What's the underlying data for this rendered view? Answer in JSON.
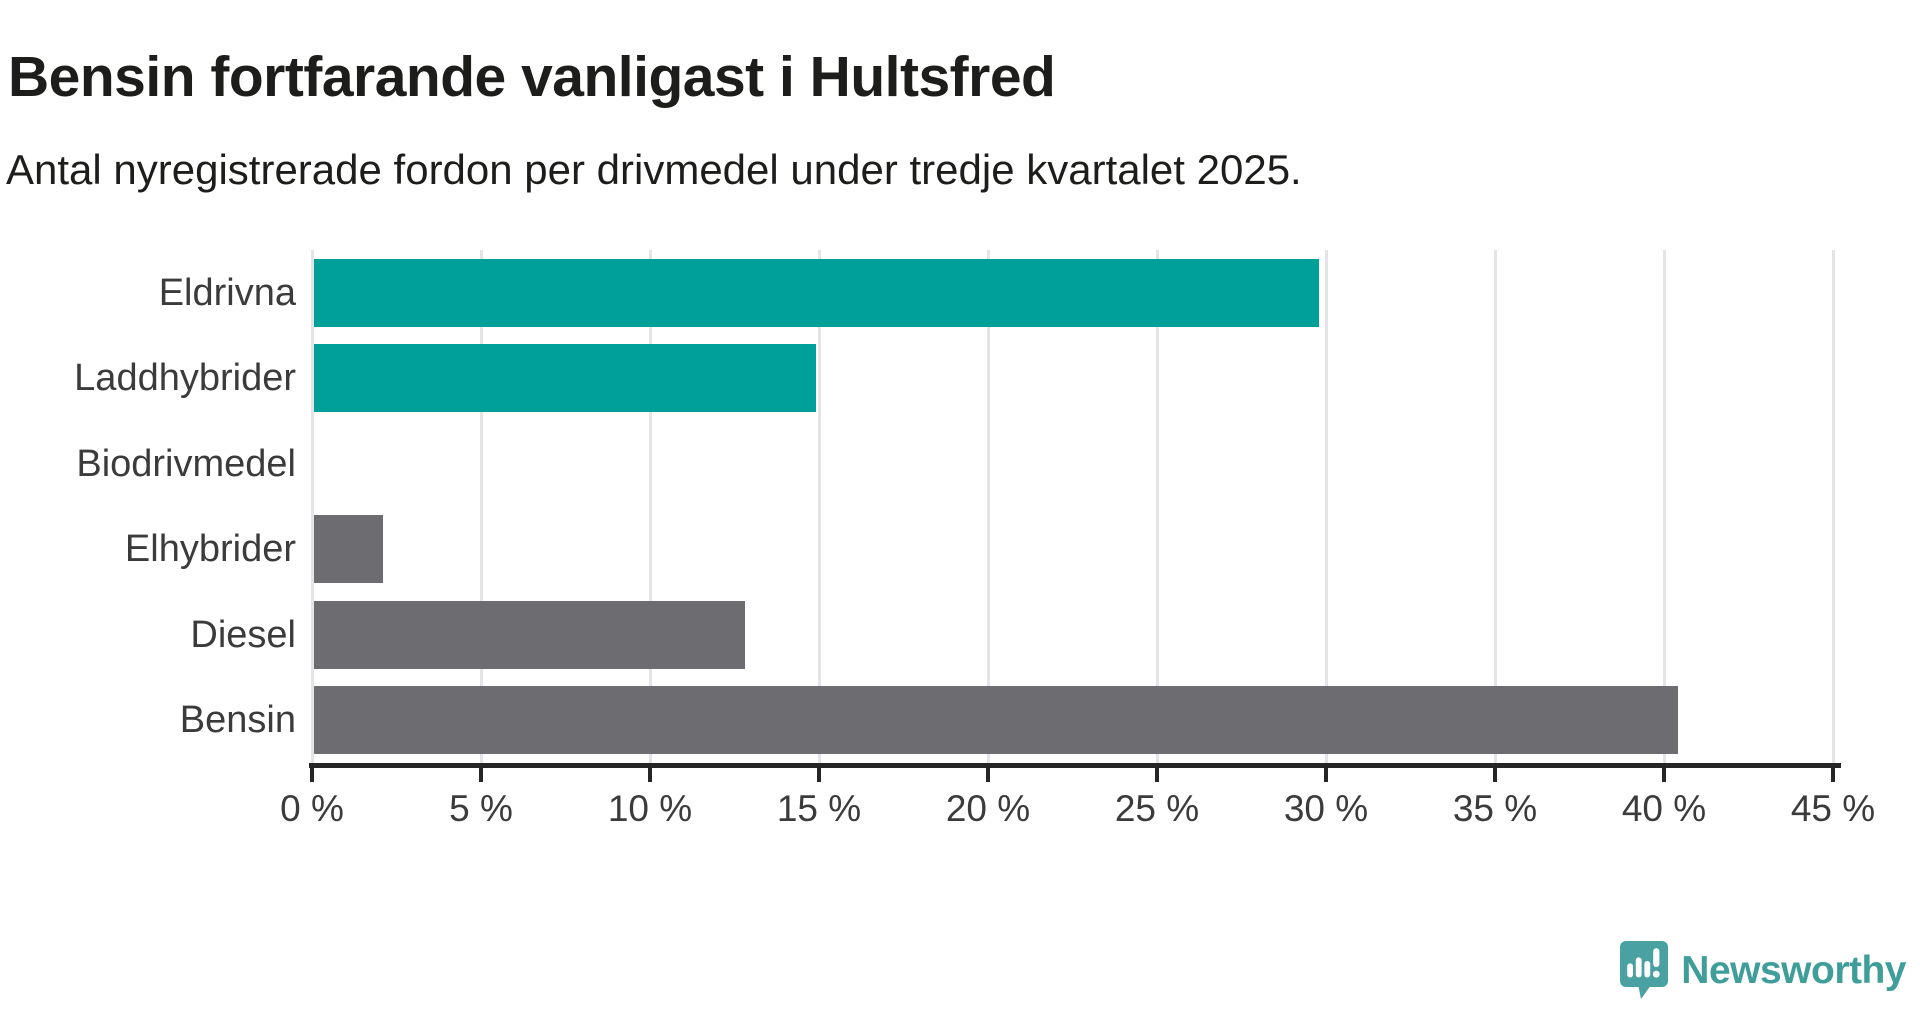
{
  "title": "Bensin fortfarande vanligast i Hultsfred",
  "subtitle": "Antal nyregistrerade fordon per drivmedel under tredje kvartalet 2025.",
  "chart_data": {
    "type": "bar",
    "orientation": "horizontal",
    "title": "Bensin fortfarande vanligast i Hultsfred",
    "subtitle": "Antal nyregistrerade fordon per drivmedel under tredje kvartalet 2025.",
    "categories": [
      "Eldrivna",
      "Laddhybrider",
      "Biodrivmedel",
      "Elhybrider",
      "Diesel",
      "Bensin"
    ],
    "values": [
      29.8,
      14.9,
      0,
      2.1,
      12.8,
      40.4
    ],
    "unit": "%",
    "bar_colors": [
      "#00a09a",
      "#00a09a",
      "#00a09a",
      "#6c6c71",
      "#6c6c71",
      "#6c6c71"
    ],
    "xlim": [
      0,
      45
    ],
    "x_ticks": [
      0,
      5,
      10,
      15,
      20,
      25,
      30,
      35,
      40,
      45
    ],
    "x_tick_labels": [
      "0 %",
      "5 %",
      "10 %",
      "15 %",
      "20 %",
      "25 %",
      "30 %",
      "35 %",
      "40 %",
      "45 %"
    ],
    "grid": "vertical-only",
    "legend": "none"
  },
  "colors": {
    "highlight_teal": "#00a09a",
    "neutral_gray": "#6c6c71",
    "gridline": "#e4e4e4",
    "axis": "#262626",
    "text_dark": "#1d1d1b",
    "text_label": "#3b3b3b",
    "brand_teal": "#3f9e9a",
    "brand_icon_teal": "#4aa1a1"
  },
  "branding": {
    "logo_text": "Newsworthy",
    "logo_icon": "newsworthy-speech-bubble-chart-icon"
  }
}
